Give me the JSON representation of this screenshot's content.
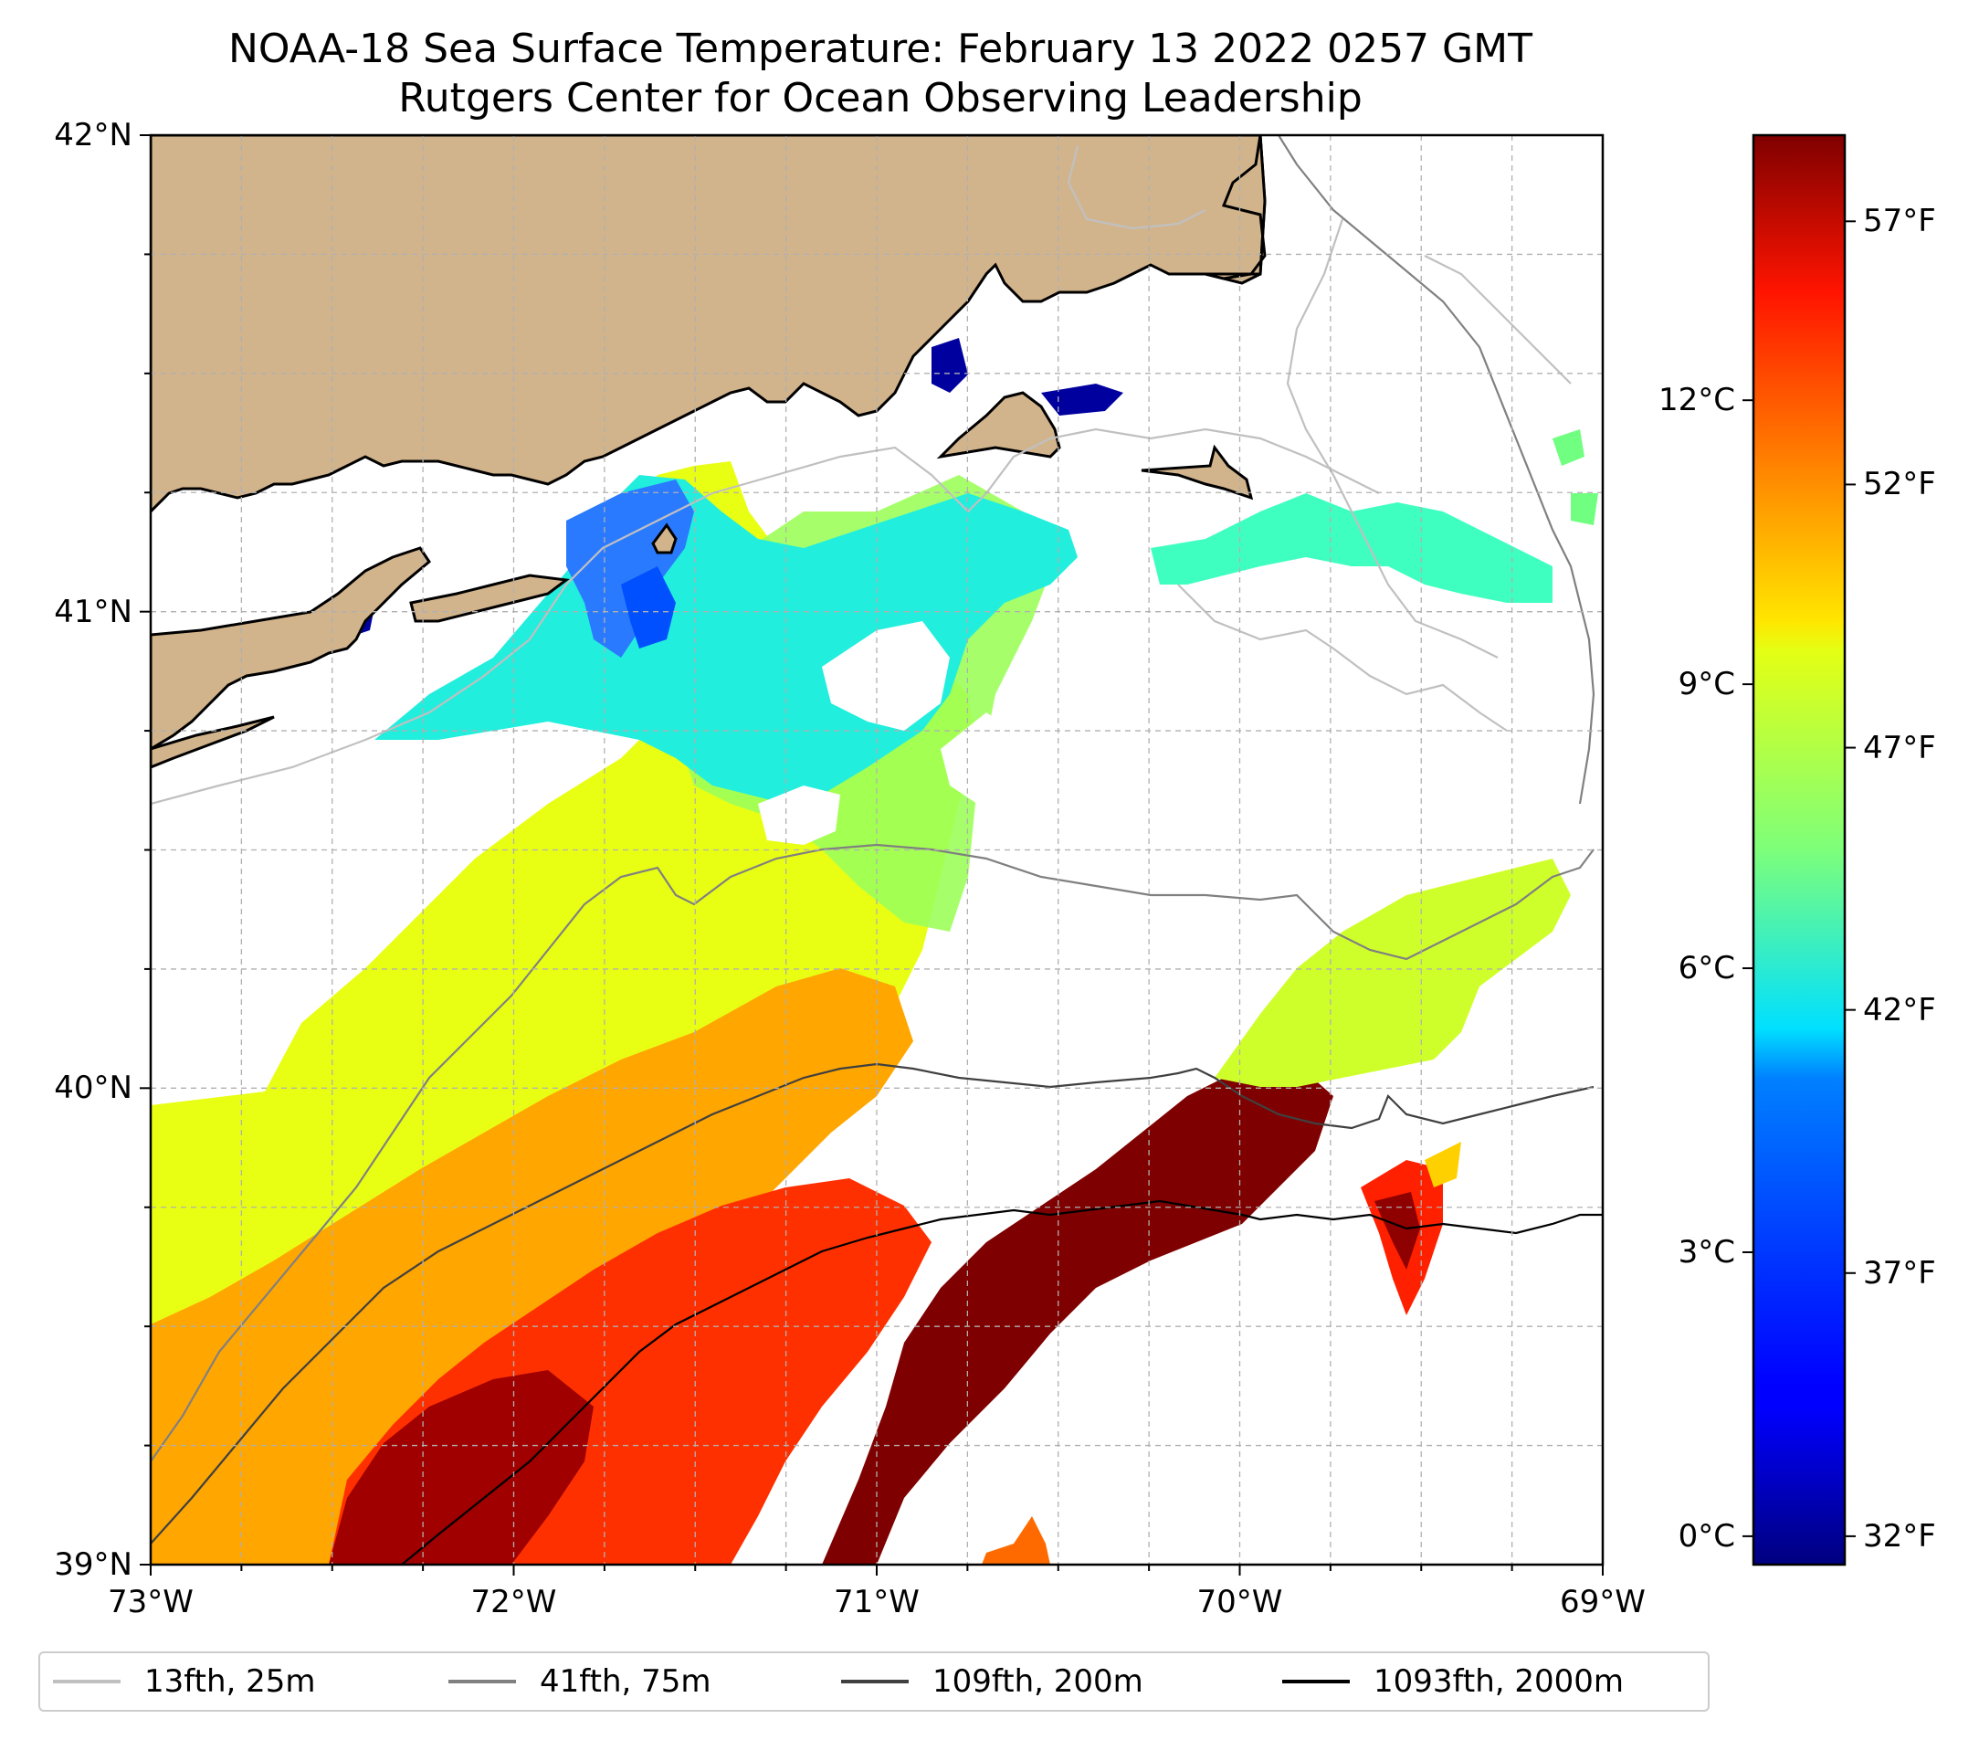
{
  "title": {
    "line1": "NOAA-18 Sea Surface Temperature: February 13 2022 0257 GMT",
    "line2": "Rutgers Center for Ocean Observing Leadership"
  },
  "map": {
    "lon_range": [
      -73,
      -69
    ],
    "lat_range": [
      39,
      42
    ],
    "x_ticks": [
      {
        "value": -73,
        "label": "73°W"
      },
      {
        "value": -72,
        "label": "72°W"
      },
      {
        "value": -71,
        "label": "71°W"
      },
      {
        "value": -70,
        "label": "70°W"
      },
      {
        "value": -69,
        "label": "69°W"
      }
    ],
    "y_ticks": [
      {
        "value": 42,
        "label": "42°N"
      },
      {
        "value": 41,
        "label": "41°N"
      },
      {
        "value": 40,
        "label": "40°N"
      },
      {
        "value": 39,
        "label": "39°N"
      }
    ],
    "gridlines": true,
    "land_color": "#d2b48c"
  },
  "colorbar": {
    "colormap": "jet",
    "min_c": -0.3,
    "max_c": 14.8,
    "celsius_ticks": [
      {
        "value": 0,
        "label": "0°C"
      },
      {
        "value": 3,
        "label": "3°C"
      },
      {
        "value": 6,
        "label": "6°C"
      },
      {
        "value": 9,
        "label": "9°C"
      },
      {
        "value": 12,
        "label": "12°C"
      }
    ],
    "fahrenheit_ticks": [
      {
        "value": 0,
        "label": "32°F"
      },
      {
        "value": 2.78,
        "label": "37°F"
      },
      {
        "value": 5.56,
        "label": "42°F"
      },
      {
        "value": 8.33,
        "label": "47°F"
      },
      {
        "value": 11.11,
        "label": "52°F"
      },
      {
        "value": 13.89,
        "label": "57°F"
      }
    ]
  },
  "legend": {
    "items": [
      {
        "label": "13fth, 25m",
        "color": "#c0c0c0"
      },
      {
        "label": "41fth, 75m",
        "color": "#808080"
      },
      {
        "label": "109fth, 200m",
        "color": "#404040"
      },
      {
        "label": "1093fth, 2000m",
        "color": "#000000"
      }
    ]
  }
}
